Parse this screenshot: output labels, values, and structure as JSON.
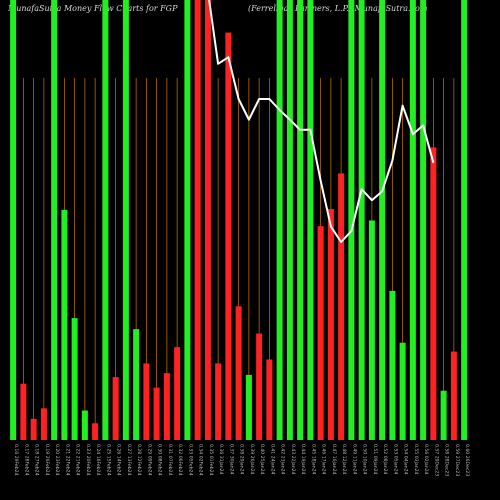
{
  "header": {
    "left_text": "MunafaSutra  Money Flow  Charts for FGP",
    "right_text": "(Ferrellgas Partners, L.P.) MunafaSutra.com"
  },
  "colors": {
    "background": "#000000",
    "up_bar": "#22ee22",
    "down_bar": "#ff2222",
    "grid_line": "#cc7a00",
    "flow_line": "#ffffff",
    "label": "#bbbbbb"
  },
  "chart_data": {
    "type": "bar",
    "title": "Money Flow Charts for FGP",
    "subtitle": "(Ferrellgas Partners, L.P.)",
    "grid": true,
    "categories": [
      "0.16 29Feb24",
      "0.17 28Feb24",
      "0.18 27Feb24",
      "0.19 26Feb24",
      "0.20 23Feb24",
      "0.21 22Feb24",
      "0.22 21Feb24",
      "0.23 20Feb24",
      "0.24 16Feb24",
      "0.25 15Feb24",
      "0.26 14Feb24",
      "0.27 13Feb24",
      "0.28 12Feb24",
      "0.29 09Feb24",
      "0.30 08Feb24",
      "0.31 07Feb24",
      "0.32 06Feb24",
      "0.33 05Feb24",
      "0.34 02Feb24",
      "0.35 01Feb24",
      "0.36 31Jan24",
      "0.37 30Jan24",
      "0.38 29Jan24",
      "0.39 26Jan24",
      "0.40 25Jan24",
      "0.41 24Jan24",
      "0.42 23Jan24",
      "0.43 22Jan24",
      "0.44 19Jan24",
      "0.45 18Jan24",
      "0.46 17Jan24",
      "0.47 16Jan24",
      "0.48 12Jan24",
      "0.49 11Jan24",
      "0.50 10Jan24",
      "0.51 09Jan24",
      "0.52 08Jan24",
      "0.53 05Jan24",
      "0.54 04Jan24",
      "0.55 03Jan24",
      "0.56 02Jan24",
      "0.57 29Dec23",
      "0.58 28Dec23",
      "0.59 27Dec23",
      "0.60 26Dec23"
    ],
    "values": [
      100,
      12.8,
      4.8,
      7.2,
      100,
      52.3,
      27.7,
      6.7,
      3.8,
      100,
      14.3,
      100,
      25.2,
      17.4,
      11.9,
      15.2,
      21.1,
      100,
      100,
      100,
      17.4,
      92.6,
      30.4,
      14.8,
      24.2,
      18.3,
      100,
      100,
      100,
      100,
      48.6,
      52.5,
      60.6,
      100,
      100,
      49.9,
      100,
      33.9,
      22.1,
      100,
      100,
      66.5,
      11.2,
      20.1,
      100
    ],
    "directions": [
      "up",
      "down",
      "down",
      "down",
      "up",
      "up",
      "up",
      "up",
      "down",
      "up",
      "down",
      "up",
      "up",
      "down",
      "down",
      "down",
      "down",
      "up",
      "down",
      "down",
      "down",
      "down",
      "down",
      "up",
      "down",
      "down",
      "up",
      "up",
      "up",
      "up",
      "down",
      "down",
      "down",
      "up",
      "up",
      "up",
      "up",
      "up",
      "up",
      "up",
      "up",
      "down",
      "up",
      "down",
      "up"
    ],
    "flow_line": [
      null,
      null,
      null,
      null,
      null,
      null,
      null,
      null,
      null,
      null,
      null,
      null,
      null,
      null,
      null,
      null,
      null,
      null,
      null,
      102,
      85.5,
      87,
      77.5,
      72.8,
      77.5,
      77.5,
      75,
      72.8,
      70.5,
      70.5,
      59,
      48.5,
      45,
      47.5,
      57,
      54.5,
      56.5,
      63.5,
      76,
      69.5,
      71.5,
      63,
      null,
      null,
      null
    ],
    "ylim": [
      0,
      100
    ]
  }
}
